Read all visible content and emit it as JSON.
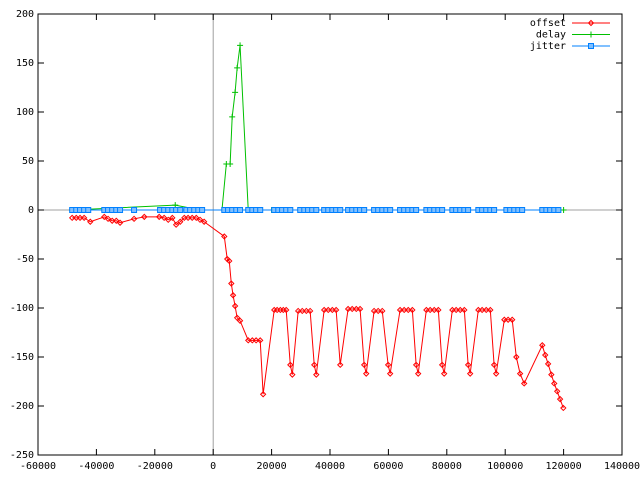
{
  "chart_data": {
    "type": "line",
    "xlim": [
      -60000,
      140000
    ],
    "xticks": [
      -60000,
      -40000,
      -20000,
      0,
      20000,
      40000,
      60000,
      80000,
      100000,
      120000,
      140000
    ],
    "ylim": [
      -250,
      200
    ],
    "yticks": [
      -250,
      -200,
      -150,
      -100,
      -50,
      0,
      50,
      100,
      150,
      200
    ],
    "zeroaxis": true,
    "legend": "top-right",
    "series": [
      {
        "name": "offset",
        "color": "#ff0000",
        "marker": "diamond",
        "x": [
          -48300,
          -46900,
          -45600,
          -44200,
          -42100,
          -37300,
          -36000,
          -34600,
          -33200,
          -31900,
          -27100,
          -23600,
          -18500,
          -16800,
          -15400,
          -14000,
          -12700,
          -11300,
          -9900,
          -8600,
          -7200,
          -5800,
          -4500,
          -3100,
          3800,
          4800,
          5500,
          6200,
          6800,
          7500,
          8200,
          9200,
          12000,
          13400,
          14700,
          16100,
          17100,
          20900,
          21900,
          23000,
          24000,
          25000,
          26400,
          27100,
          29100,
          30500,
          31900,
          33200,
          34600,
          35300,
          38000,
          39400,
          40800,
          42100,
          43500,
          46200,
          47600,
          49000,
          50300,
          51700,
          52400,
          55100,
          56500,
          57900,
          59900,
          60600,
          64000,
          65400,
          66800,
          68200,
          69500,
          70200,
          73000,
          74300,
          75700,
          77100,
          78400,
          79100,
          81900,
          83200,
          84600,
          86000,
          87300,
          88000,
          90800,
          92100,
          93500,
          94900,
          96200,
          96900,
          99700,
          101000,
          102400,
          103800,
          105100,
          106500,
          112700,
          113700,
          114700,
          115800,
          116800,
          117800,
          118800,
          119900
        ],
        "values": [
          -8,
          -8,
          -8,
          -8,
          -12,
          -7,
          -9,
          -11,
          -11,
          -13,
          -9,
          -7,
          -7,
          -8,
          -10,
          -8,
          -15,
          -12,
          -8,
          -8,
          -8,
          -8,
          -10,
          -12,
          -27,
          -50,
          -52,
          -75,
          -87,
          -98,
          -110,
          -113,
          -133,
          -133,
          -133,
          -133,
          -188,
          -102,
          -102,
          -102,
          -102,
          -102,
          -158,
          -168,
          -103,
          -103,
          -103,
          -103,
          -158,
          -168,
          -102,
          -102,
          -102,
          -102,
          -158,
          -101,
          -101,
          -101,
          -101,
          -158,
          -167,
          -103,
          -103,
          -103,
          -158,
          -167,
          -102,
          -102,
          -102,
          -102,
          -158,
          -167,
          -102,
          -102,
          -102,
          -102,
          -158,
          -167,
          -102,
          -102,
          -102,
          -102,
          -158,
          -167,
          -102,
          -102,
          -102,
          -102,
          -158,
          -167,
          -112,
          -112,
          -112,
          -150,
          -167,
          -177,
          -138,
          -148,
          -157,
          -168,
          -177,
          -185,
          -193,
          -202
        ]
      },
      {
        "name": "delay",
        "color": "#00c000",
        "marker": "plus",
        "x": [
          -48300,
          -13000,
          -4500,
          3000,
          4500,
          5800,
          6500,
          7500,
          8200,
          9200,
          12000,
          20000,
          120000
        ],
        "values": [
          0,
          5,
          0,
          0,
          47,
          47,
          95,
          120,
          145,
          168,
          0,
          0,
          0
        ]
      },
      {
        "name": "jitter",
        "color": "#0080ff",
        "marker": "square",
        "x": [
          -48300,
          -46900,
          -45600,
          -44200,
          -42800,
          -37300,
          -36000,
          -34600,
          -33200,
          -31900,
          -27100,
          -18200,
          -16800,
          -15400,
          -14000,
          -12700,
          -11300,
          -9200,
          -7900,
          -6500,
          -5100,
          -3800,
          3800,
          5100,
          6500,
          7900,
          9200,
          12000,
          13400,
          14700,
          16100,
          20900,
          22300,
          23600,
          25000,
          26400,
          29800,
          31200,
          32500,
          33900,
          35300,
          38000,
          39400,
          40800,
          42100,
          43500,
          46200,
          47600,
          49000,
          50300,
          51700,
          55100,
          56500,
          57900,
          59300,
          60600,
          64000,
          65400,
          66800,
          68200,
          69500,
          73000,
          74300,
          75700,
          77100,
          78400,
          81900,
          83200,
          84600,
          86000,
          87300,
          90800,
          92100,
          93500,
          94900,
          96200,
          100400,
          101700,
          103100,
          104500,
          105800,
          112700,
          114100,
          115400,
          116800,
          118200
        ],
        "values": [
          0,
          0,
          0,
          0,
          0,
          0,
          0,
          0,
          0,
          0,
          0,
          0,
          0,
          0,
          0,
          0,
          0,
          0,
          0,
          0,
          0,
          0,
          0,
          0,
          0,
          0,
          0,
          0,
          0,
          0,
          0,
          0,
          0,
          0,
          0,
          0,
          0,
          0,
          0,
          0,
          0,
          0,
          0,
          0,
          0,
          0,
          0,
          0,
          0,
          0,
          0,
          0,
          0,
          0,
          0,
          0,
          0,
          0,
          0,
          0,
          0,
          0,
          0,
          0,
          0,
          0,
          0,
          0,
          0,
          0,
          0,
          0,
          0,
          0,
          0,
          0,
          0,
          0,
          0,
          0,
          0,
          0,
          0,
          0,
          0,
          0
        ]
      }
    ]
  }
}
